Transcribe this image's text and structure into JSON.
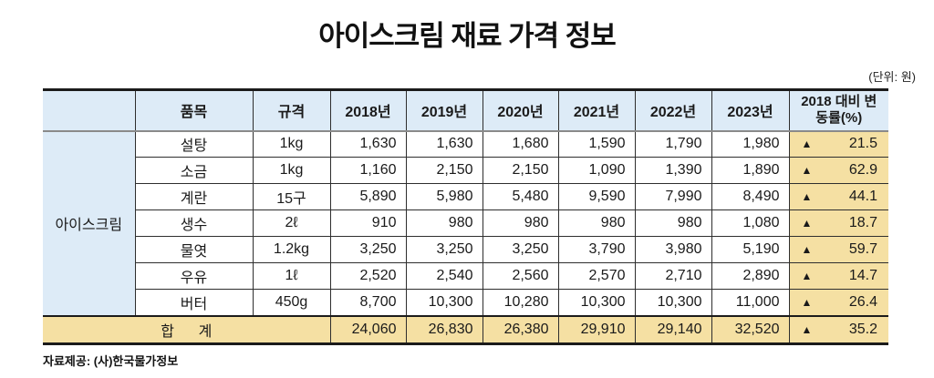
{
  "title": "아이스크림 재료 가격 정보",
  "unit_label": "(단위: 원)",
  "source_label": "자료제공: (사)한국물가정보",
  "colors": {
    "header_bg": "#ddebf7",
    "highlight_bg": "#f5e0a3",
    "border_dark": "#1b1b1b",
    "border_gray": "#8a8a8a",
    "text": "#1a1a1a"
  },
  "chart_data": {
    "type": "table",
    "title": "아이스크림 재료 가격 정보",
    "unit": "원",
    "group_label": "아이스크림",
    "columns": [
      "품목",
      "규격",
      "2018년",
      "2019년",
      "2020년",
      "2021년",
      "2022년",
      "2023년",
      "2018 대비 변동률(%)"
    ],
    "change_marker": "▲",
    "rows": [
      {
        "item": "설탕",
        "spec": "1kg",
        "prices": [
          1630,
          1630,
          1680,
          1590,
          1790,
          1980
        ],
        "change_pct": 21.5
      },
      {
        "item": "소금",
        "spec": "1kg",
        "prices": [
          1160,
          2150,
          2150,
          1090,
          1390,
          1890
        ],
        "change_pct": 62.9
      },
      {
        "item": "계란",
        "spec": "15구",
        "prices": [
          5890,
          5980,
          5480,
          9590,
          7990,
          8490
        ],
        "change_pct": 44.1
      },
      {
        "item": "생수",
        "spec": "2ℓ",
        "prices": [
          910,
          980,
          980,
          980,
          980,
          1080
        ],
        "change_pct": 18.7
      },
      {
        "item": "물엿",
        "spec": "1.2kg",
        "prices": [
          3250,
          3250,
          3250,
          3790,
          3980,
          5190
        ],
        "change_pct": 59.7
      },
      {
        "item": "우유",
        "spec": "1ℓ",
        "prices": [
          2520,
          2540,
          2560,
          2570,
          2710,
          2890
        ],
        "change_pct": 14.7
      },
      {
        "item": "버터",
        "spec": "450g",
        "prices": [
          8700,
          10300,
          10280,
          10300,
          10300,
          11000
        ],
        "change_pct": 26.4
      }
    ],
    "total": {
      "label": "합      계",
      "prices": [
        24060,
        26830,
        26380,
        29910,
        29140,
        32520
      ],
      "change_pct": 35.2
    }
  }
}
